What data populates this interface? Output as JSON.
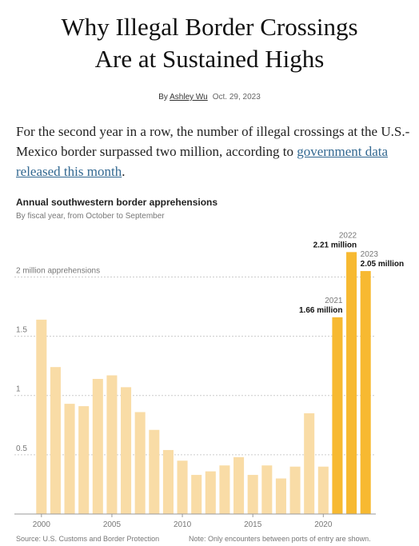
{
  "header": {
    "title": [
      "Why Illegal Border Crossings",
      "Are at Sustained Highs"
    ],
    "byline_prefix": "By",
    "author": "Ashley Wu",
    "date": "Oct. 29, 2023"
  },
  "intro": {
    "text": "For the second year in a row, the number of illegal crossings at the U.S.-Mexico border surpassed two million, according to",
    "link": "government data released this month",
    "end": "."
  },
  "chart_data": {
    "type": "bar",
    "title": "Annual southwestern border apprehensions",
    "subtitle": "By fiscal year, from October to September",
    "x": [
      2000,
      2001,
      2002,
      2003,
      2004,
      2005,
      2006,
      2007,
      2008,
      2009,
      2010,
      2011,
      2012,
      2013,
      2014,
      2015,
      2016,
      2017,
      2018,
      2019,
      2020,
      2021,
      2022,
      2023
    ],
    "values": [
      1.64,
      1.24,
      0.93,
      0.91,
      1.14,
      1.17,
      1.07,
      0.86,
      0.71,
      0.54,
      0.45,
      0.33,
      0.36,
      0.41,
      0.48,
      0.33,
      0.41,
      0.3,
      0.4,
      0.85,
      0.4,
      1.66,
      2.21,
      2.05
    ],
    "value_labels": [
      null,
      null,
      null,
      null,
      null,
      null,
      null,
      null,
      null,
      null,
      null,
      null,
      null,
      null,
      null,
      null,
      null,
      null,
      null,
      null,
      null,
      "1.66 million",
      "2.21 million",
      "2.05 million"
    ],
    "colors": [
      "#f9dca6",
      "#f9dca6",
      "#f9dca6",
      "#f9dca6",
      "#f9dca6",
      "#f9dca6",
      "#f9dca6",
      "#f9dca6",
      "#f9dca6",
      "#f9dca6",
      "#f9dca6",
      "#f9dca6",
      "#f9dca6",
      "#f9dca6",
      "#f9dca6",
      "#f9dca6",
      "#f9dca6",
      "#f9dca6",
      "#f9dca6",
      "#f9dca6",
      "#f9dca6",
      "#f7b931",
      "#f7b931",
      "#f7b931"
    ],
    "xlim": [
      1999.5,
      2023.5
    ],
    "xticks": [
      2000,
      2005,
      2010,
      2015,
      2020
    ],
    "ylim": [
      0,
      2.3
    ],
    "yticks": [
      0.5,
      1,
      1.5,
      {
        "value": 2,
        "label": "2 million apprehensions"
      }
    ],
    "grid": true,
    "source": "Source: U.S. Customs and Border Protection",
    "note": "Note: Only encounters between ports of entry are shown."
  }
}
